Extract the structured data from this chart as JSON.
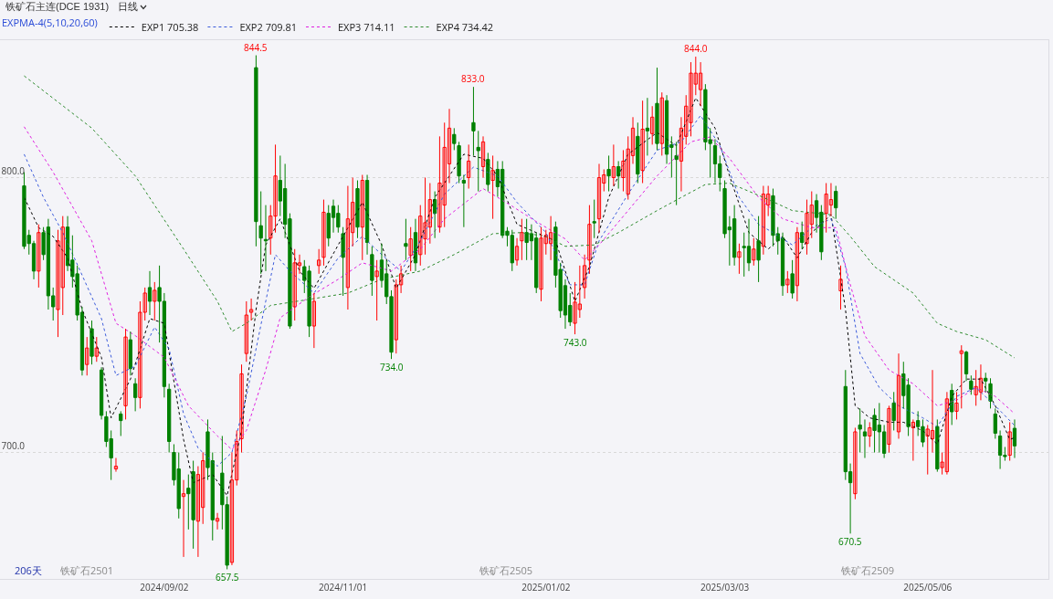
{
  "chart_data": {
    "type": "candlestick",
    "title": "铁矿石主连(DCE 1931)",
    "subtitle": "日线",
    "legend_title": "EXPMA-4(5,10,20,60)",
    "legend": "top left",
    "grid": "y",
    "line_style": "dotted",
    "marker": "none",
    "categories": [
      null,
      null,
      null,
      null,
      null,
      null,
      null,
      null,
      null,
      null,
      null,
      null,
      null,
      null,
      null,
      null,
      null,
      null,
      null,
      null,
      null,
      null,
      null,
      null,
      null,
      null,
      null,
      null,
      null,
      "2024/09/02",
      null,
      null,
      null,
      null,
      null,
      null,
      null,
      null,
      null,
      null,
      null,
      null,
      null,
      null,
      null,
      null,
      null,
      null,
      null,
      null,
      null,
      null,
      null,
      null,
      null,
      null,
      null,
      null,
      null,
      null,
      null,
      null,
      null,
      null,
      null,
      null,
      "2024/11/01",
      null,
      null,
      null,
      null,
      null,
      null,
      null,
      null,
      null,
      null,
      null,
      null,
      null,
      null,
      null,
      null,
      null,
      null,
      null,
      null,
      null,
      null,
      null,
      null,
      null,
      null,
      null,
      null,
      null,
      null,
      null,
      null,
      null,
      null,
      null,
      null,
      null,
      null,
      null,
      null,
      null,
      "2025/01/02",
      null,
      null,
      null,
      null,
      null,
      null,
      null,
      null,
      null,
      null,
      null,
      null,
      null,
      null,
      null,
      null,
      null,
      null,
      null,
      null,
      null,
      null,
      null,
      null,
      null,
      null,
      null,
      null,
      null,
      null,
      null,
      null,
      null,
      null,
      null,
      null,
      "2025/03/03",
      null,
      null,
      null,
      null,
      null,
      null,
      null,
      null,
      null,
      null,
      null,
      null,
      null,
      null,
      null,
      null,
      null,
      null,
      null,
      null,
      null,
      null,
      null,
      null,
      null,
      null,
      null,
      null,
      null,
      null,
      null,
      null,
      null,
      null,
      null,
      null,
      null,
      null,
      null,
      null,
      null,
      "2025/05/06",
      null,
      null,
      null,
      null,
      null,
      null,
      null,
      null,
      null,
      null,
      null,
      null,
      null,
      null,
      null,
      null,
      null,
      null
    ],
    "ylim": [
      654,
      850
    ],
    "yticks": [
      {
        "value": 700,
        "label": "700.0"
      },
      {
        "value": 800,
        "label": "800.0"
      }
    ],
    "ohlc": [
      [
        797,
        802,
        774,
        775
      ],
      [
        779,
        781,
        772,
        776
      ],
      [
        776,
        777,
        763,
        766
      ],
      [
        766,
        783,
        760,
        780
      ],
      [
        780,
        782,
        770,
        772
      ],
      [
        782,
        785,
        752,
        757
      ],
      [
        757,
        760,
        748,
        753
      ],
      [
        752,
        781,
        742,
        777
      ],
      [
        760,
        786,
        750,
        782
      ],
      [
        782,
        786,
        766,
        768
      ],
      [
        770,
        779,
        760,
        764
      ],
      [
        765,
        768,
        748,
        750
      ],
      [
        751,
        753,
        728,
        730
      ],
      [
        732,
        742,
        728,
        738
      ],
      [
        745,
        748,
        732,
        735
      ],
      [
        735,
        742,
        733,
        738
      ],
      [
        730,
        731,
        712,
        713.5
      ],
      [
        713,
        715,
        702,
        704
      ],
      [
        705,
        708,
        690,
        698
      ],
      [
        694,
        698,
        693,
        695
      ],
      [
        714,
        715,
        706,
        711.6
      ],
      [
        717,
        745,
        712,
        742
      ],
      [
        741,
        744,
        728,
        730.5
      ],
      [
        725,
        727,
        715,
        720
      ],
      [
        720,
        755,
        716,
        751
      ],
      [
        751,
        760,
        748,
        758
      ],
      [
        760,
        766,
        750,
        755
      ],
      [
        755,
        762,
        748,
        759
      ],
      [
        760,
        768,
        740,
        755
      ],
      [
        755,
        758,
        720,
        724
      ],
      [
        723,
        725,
        700,
        704
      ],
      [
        700,
        703,
        688,
        690
      ],
      [
        694,
        700,
        676,
        679.6
      ],
      [
        684,
        690,
        662,
        685
      ],
      [
        687,
        692,
        672,
        685
      ],
      [
        693,
        697,
        665,
        675.5
      ],
      [
        675,
        695,
        662,
        692
      ],
      [
        680,
        700,
        674,
        697
      ],
      [
        707.5,
        712,
        690,
        694.5
      ],
      [
        697,
        700,
        668,
        675.5
      ],
      [
        675,
        678,
        672,
        676
      ],
      [
        692.5,
        706,
        672,
        681
      ],
      [
        681,
        684,
        657.5,
        659
      ],
      [
        660,
        700,
        659,
        690
      ],
      [
        690,
        708,
        688,
        704
      ],
      [
        705,
        732,
        700,
        728.6
      ],
      [
        736,
        755,
        733,
        750
      ],
      [
        751,
        756,
        748,
        752
      ],
      [
        840,
        844.5,
        775,
        784
      ],
      [
        782.5,
        795,
        765,
        778
      ],
      [
        777.5,
        790,
        766,
        777
      ],
      [
        778,
        790,
        772,
        786
      ],
      [
        786,
        812,
        780,
        800.6
      ],
      [
        799,
        808,
        786,
        791.5
      ],
      [
        796,
        805,
        778,
        783
      ],
      [
        785,
        787,
        745,
        746
      ],
      [
        753,
        774,
        748,
        769
      ],
      [
        768,
        772,
        765,
        769
      ],
      [
        767.6,
        770,
        758,
        762.6
      ],
      [
        766,
        768,
        742,
        746
      ],
      [
        746,
        758,
        738,
        755
      ],
      [
        768,
        774,
        765,
        770
      ],
      [
        771,
        792,
        768,
        787.4
      ],
      [
        787,
        790,
        775,
        778
      ],
      [
        789.6,
        792,
        780,
        785.5
      ],
      [
        787,
        790,
        780,
        782
      ],
      [
        779.6,
        782,
        757,
        771
      ],
      [
        760,
        797,
        752,
        785
      ],
      [
        780,
        800,
        775,
        791
      ],
      [
        796,
        799,
        778,
        782
      ],
      [
        782,
        801,
        770,
        799
      ],
      [
        799,
        801,
        772,
        776.4
      ],
      [
        772,
        775,
        757,
        762.6
      ],
      [
        764,
        770,
        748,
        766
      ],
      [
        770,
        776,
        760,
        762.6
      ],
      [
        765,
        770,
        754,
        756.7
      ],
      [
        756.7,
        759,
        734,
        736.5
      ],
      [
        741,
        763,
        736,
        761
      ],
      [
        761,
        768,
        758,
        765
      ],
      [
        776,
        785,
        770,
        775
      ],
      [
        771.7,
        782,
        766,
        777.7
      ],
      [
        780,
        785,
        766,
        769
      ],
      [
        772,
        790,
        768,
        786
      ],
      [
        777.7,
        800,
        772,
        783.6
      ],
      [
        782,
        798,
        776,
        792
      ],
      [
        792,
        795,
        778,
        787
      ],
      [
        782,
        815,
        780,
        798
      ],
      [
        790,
        820,
        782,
        811
      ],
      [
        805,
        825,
        798,
        818
      ],
      [
        815.7,
        818,
        810,
        812.4
      ],
      [
        811.6,
        813,
        798,
        800.6
      ],
      [
        799,
        801,
        782,
        798
      ],
      [
        800,
        812,
        796,
        806
      ],
      [
        820,
        833,
        808,
        817
      ],
      [
        811,
        817,
        795,
        809.8
      ],
      [
        804,
        815,
        800,
        813
      ],
      [
        806.6,
        809,
        795,
        797.5
      ],
      [
        799,
        808,
        785,
        802.6
      ],
      [
        803,
        806,
        793,
        796.7
      ],
      [
        803,
        806,
        778,
        779
      ],
      [
        780.5,
        782,
        775,
        779
      ],
      [
        779,
        781,
        766,
        769
      ],
      [
        770,
        778,
        768,
        775
      ],
      [
        777,
        785,
        770,
        780
      ],
      [
        780,
        785,
        770,
        776.4
      ],
      [
        779.6,
        783,
        770,
        777
      ],
      [
        778,
        780,
        758,
        760
      ],
      [
        759.4,
        782,
        755,
        778
      ],
      [
        776,
        781,
        772,
        779
      ],
      [
        776,
        786,
        770,
        780
      ],
      [
        782,
        784,
        760,
        764.5
      ],
      [
        766.6,
        769,
        749,
        751.6
      ],
      [
        760.7,
        763,
        745,
        750
      ],
      [
        753.5,
        758,
        746,
        747.5
      ],
      [
        747,
        762,
        743,
        754.7
      ],
      [
        752,
        768,
        749,
        754
      ],
      [
        760,
        772,
        756,
        768
      ],
      [
        770,
        790,
        765,
        783
      ],
      [
        784,
        792,
        778,
        783.5
      ],
      [
        785,
        805,
        780,
        800
      ],
      [
        798,
        803,
        795,
        801
      ],
      [
        803,
        808,
        795,
        800.6
      ],
      [
        800,
        812,
        797,
        804
      ],
      [
        804,
        806,
        796,
        800.6
      ],
      [
        800,
        810,
        795,
        806
      ],
      [
        794,
        815,
        792,
        810.4
      ],
      [
        808,
        822,
        805,
        818
      ],
      [
        815,
        820,
        798,
        801.3
      ],
      [
        802.6,
        828,
        798,
        817.6
      ],
      [
        818,
        829,
        808,
        817
      ],
      [
        816,
        826,
        812,
        822
      ],
      [
        827,
        840,
        810,
        812.4
      ],
      [
        812.4,
        831,
        808,
        829
      ],
      [
        828,
        830,
        805,
        808.5
      ],
      [
        812,
        815,
        800,
        811
      ],
      [
        808,
        813,
        790,
        806.6
      ],
      [
        806,
        822,
        795,
        818
      ],
      [
        815,
        830,
        812,
        826
      ],
      [
        820,
        842,
        815,
        838
      ],
      [
        834,
        844,
        830,
        838
      ],
      [
        832,
        842,
        826,
        838
      ],
      [
        832,
        834,
        810,
        813
      ],
      [
        813.8,
        818,
        800,
        812.4
      ],
      [
        811.6,
        814,
        798,
        805
      ],
      [
        805,
        808,
        795,
        800
      ],
      [
        796,
        799,
        778,
        779.6
      ],
      [
        782,
        786,
        768,
        781
      ],
      [
        785,
        790,
        768,
        771
      ],
      [
        771,
        776,
        765,
        773
      ],
      [
        775,
        780,
        764,
        774.5
      ],
      [
        775,
        785,
        766,
        769
      ],
      [
        770,
        778,
        768,
        774
      ],
      [
        777,
        786,
        762,
        770
      ],
      [
        775,
        797,
        772,
        794
      ],
      [
        790,
        797,
        786,
        794
      ],
      [
        793.4,
        796,
        775,
        779
      ],
      [
        779.6,
        782,
        772,
        777
      ],
      [
        778,
        780,
        757,
        760.7
      ],
      [
        761,
        766,
        758,
        763
      ],
      [
        765,
        770,
        756,
        758
      ],
      [
        760.7,
        782,
        755,
        780
      ],
      [
        780,
        784,
        774,
        776.4
      ],
      [
        776,
        792,
        772,
        787
      ],
      [
        783,
        795,
        778,
        790
      ],
      [
        791.6,
        794,
        780,
        785.5
      ],
      [
        787.4,
        790,
        770,
        773
      ],
      [
        787,
        798,
        780,
        794
      ],
      [
        790,
        798,
        786,
        792
      ],
      [
        795,
        797,
        785,
        789
      ],
      [
        758.8,
        768,
        752,
        763
      ],
      [
        724,
        730,
        690,
        693
      ],
      [
        693,
        696,
        670.5,
        689
      ],
      [
        685,
        709,
        683,
        707.5
      ],
      [
        710,
        716,
        700,
        708.5
      ],
      [
        707.5,
        712,
        698,
        706
      ],
      [
        706,
        711,
        702,
        709
      ],
      [
        713.5,
        716,
        700,
        708
      ],
      [
        710,
        718,
        700,
        707.5
      ],
      [
        707.5,
        710,
        698,
        699.7
      ],
      [
        703,
        717,
        700,
        716
      ],
      [
        718,
        722,
        708,
        711.6
      ],
      [
        707.5,
        736,
        705,
        728
      ],
      [
        728.6,
        733,
        716,
        720.7
      ],
      [
        724.5,
        727,
        706,
        709.4
      ],
      [
        709,
        712,
        697,
        711
      ],
      [
        711.6,
        715,
        706,
        709.4
      ],
      [
        709.4,
        712,
        702,
        703.8
      ],
      [
        706,
        710,
        692,
        708.5
      ],
      [
        705,
        730,
        700,
        708
      ],
      [
        709.4,
        712,
        693,
        694
      ],
      [
        694.5,
        700,
        692,
        696.5
      ],
      [
        693,
        722,
        692,
        719.5
      ],
      [
        722.6,
        725,
        710,
        714.8
      ],
      [
        715,
        722,
        712,
        718
      ],
      [
        736,
        739,
        716,
        737
      ],
      [
        736.5,
        737,
        726,
        728.6
      ],
      [
        726,
        728,
        721,
        723
      ],
      [
        721,
        730,
        717,
        724
      ],
      [
        722,
        732,
        719,
        727
      ],
      [
        727,
        729,
        722,
        726
      ],
      [
        725,
        727,
        716,
        718.7
      ],
      [
        714,
        716,
        705,
        707
      ],
      [
        706,
        708,
        694,
        699
      ],
      [
        699,
        702,
        697,
        698.5
      ],
      [
        699,
        711,
        697,
        707.5
      ],
      [
        708.8,
        712,
        698,
        702.4
      ]
    ],
    "colors": [
      "#008000",
      "#008000",
      "#008000",
      "#ff0000",
      "#008000",
      "#008000",
      "#008000",
      "#ff0000",
      "#ff0000",
      "#008000",
      "#008000",
      "#008000",
      "#008000",
      "#ff0000",
      "#008000",
      "#ff0000",
      "#008000",
      "#008000",
      "#008000",
      "#ff0000",
      "#008000",
      "#ff0000",
      "#008000",
      "#008000",
      "#ff0000",
      "#ff0000",
      "#008000",
      "#ff0000",
      "#008000",
      "#008000",
      "#008000",
      "#008000",
      "#008000",
      "#ff0000",
      "#008000",
      "#008000",
      "#ff0000",
      "#ff0000",
      "#008000",
      "#008000",
      "#ff0000",
      "#008000",
      "#008000",
      "#ff0000",
      "#ff0000",
      "#ff0000",
      "#ff0000",
      "#ff0000",
      "#008000",
      "#008000",
      "#008000",
      "#ff0000",
      "#ff0000",
      "#008000",
      "#008000",
      "#008000",
      "#ff0000",
      "#ff0000",
      "#008000",
      "#008000",
      "#ff0000",
      "#ff0000",
      "#ff0000",
      "#008000",
      "#008000",
      "#008000",
      "#008000",
      "#ff0000",
      "#ff0000",
      "#008000",
      "#ff0000",
      "#008000",
      "#008000",
      "#ff0000",
      "#008000",
      "#008000",
      "#008000",
      "#ff0000",
      "#ff0000",
      "#008000",
      "#ff0000",
      "#008000",
      "#ff0000",
      "#ff0000",
      "#ff0000",
      "#008000",
      "#ff0000",
      "#ff0000",
      "#ff0000",
      "#008000",
      "#008000",
      "#008000",
      "#ff0000",
      "#008000",
      "#008000",
      "#ff0000",
      "#008000",
      "#ff0000",
      "#008000",
      "#008000",
      "#008000",
      "#008000",
      "#ff0000",
      "#ff0000",
      "#008000",
      "#008000",
      "#008000",
      "#ff0000",
      "#ff0000",
      "#ff0000",
      "#008000",
      "#008000",
      "#008000",
      "#008000",
      "#ff0000",
      "#ff0000",
      "#ff0000",
      "#ff0000",
      "#008000",
      "#ff0000",
      "#ff0000",
      "#008000",
      "#ff0000",
      "#008000",
      "#ff0000",
      "#ff0000",
      "#ff0000",
      "#008000",
      "#ff0000",
      "#008000",
      "#ff0000",
      "#008000",
      "#ff0000",
      "#008000",
      "#008000",
      "#008000",
      "#ff0000",
      "#ff0000",
      "#ff0000",
      "#ff0000",
      "#ff0000",
      "#008000",
      "#008000",
      "#008000",
      "#008000",
      "#008000",
      "#008000",
      "#008000",
      "#ff0000",
      "#008000",
      "#008000",
      "#ff0000",
      "#008000",
      "#ff0000",
      "#ff0000",
      "#008000",
      "#008000",
      "#008000",
      "#ff0000",
      "#008000",
      "#ff0000",
      "#008000",
      "#ff0000",
      "#ff0000",
      "#008000",
      "#008000",
      "#ff0000",
      "#ff0000",
      "#008000",
      "#ff0000",
      "#008000",
      "#008000",
      "#ff0000",
      "#008000",
      "#008000",
      "#ff0000",
      "#008000",
      "#008000",
      "#008000",
      "#ff0000",
      "#008000",
      "#ff0000",
      "#008000",
      "#008000",
      "#ff0000",
      "#008000",
      "#008000",
      "#ff0000",
      "#ff0000",
      "#008000",
      "#ff0000",
      "#ff0000",
      "#008000",
      "#ff0000",
      "#ff0000",
      "#008000",
      "#008000",
      "#ff0000",
      "#ff0000",
      "#008000",
      "#008000",
      "#008000",
      "#008000",
      "#008000",
      "#ff0000",
      "#008000"
    ],
    "series": [
      {
        "type": "line",
        "name": "EXP1 705.38",
        "color": "#000000",
        "values": [
          792.8,
          null,
          null,
          781.8,
          null,
          null,
          778.6,
          null,
          null,
          770.8,
          null,
          null,
          752,
          null,
          null,
          null,
          734.6,
          null,
          712.6,
          null,
          null,
          null,
          726.7,
          null,
          null,
          null,
          748.7,
          null,
          null,
          747,
          null,
          null,
          null,
          704.7,
          null,
          689,
          null,
          null,
          null,
          692,
          null,
          null,
          684.3,
          null,
          null,
          708,
          null,
          null,
          752,
          null,
          775.5,
          null,
          null,
          785,
          null,
          null,
          null,
          766,
          null,
          null,
          759.7,
          null,
          null,
          null,
          null,
          775.5,
          null,
          null,
          null,
          null,
          791,
          null,
          null,
          null,
          775.5,
          null,
          null,
          759.7,
          null,
          null,
          null,
          772,
          null,
          null,
          null,
          792.8,
          null,
          null,
          null,
          null,
          null,
          808.5,
          null,
          null,
          null,
          807,
          null,
          null,
          800.6,
          null,
          null,
          null,
          783,
          null,
          null,
          null,
          780,
          null,
          null,
          null,
          777,
          null,
          null,
          null,
          755,
          null,
          null,
          767.6,
          null,
          null,
          null,
          792.8,
          null,
          null,
          null,
          808.5,
          null,
          null,
          null,
          null,
          null,
          816.4,
          null,
          null,
          null,
          811.6,
          null,
          null,
          null,
          829,
          null,
          null,
          null,
          818,
          null,
          null,
          800.6,
          null,
          null,
          null,
          780,
          null,
          null,
          null,
          774,
          null,
          null,
          778.6,
          null,
          null,
          770.8,
          null,
          null,
          780,
          null,
          null,
          null,
          786.5,
          null,
          null,
          752,
          null,
          717,
          null,
          null,
          712.6,
          null,
          null,
          null,
          711,
          null,
          null,
          711,
          null,
          null,
          null,
          707.9,
          null,
          null,
          703,
          null,
          null,
          720.4,
          null,
          null,
          726.7,
          null,
          null,
          726.7,
          null,
          null,
          717,
          null,
          null,
          704.7,
          705.4
        ]
      },
      {
        "type": "line",
        "name": "EXP2 709.81",
        "color": "#3b5bdb",
        "values": [
          808.5,
          null,
          null,
          null,
          792.8,
          null,
          null,
          null,
          780,
          null,
          null,
          null,
          764.5,
          null,
          null,
          null,
          748.7,
          null,
          null,
          728,
          null,
          null,
          null,
          731.4,
          null,
          null,
          null,
          745.6,
          null,
          null,
          737.7,
          null,
          null,
          714,
          null,
          null,
          701.6,
          null,
          null,
          null,
          695,
          null,
          null,
          700,
          null,
          null,
          720.4,
          null,
          null,
          null,
          755,
          null,
          772,
          null,
          null,
          766,
          null,
          null,
          null,
          null,
          758,
          null,
          null,
          null,
          null,
          770.8,
          null,
          null,
          null,
          null,
          778.6,
          null,
          null,
          null,
          772,
          null,
          null,
          null,
          766,
          null,
          null,
          null,
          777,
          null,
          null,
          null,
          null,
          794,
          null,
          null,
          null,
          null,
          null,
          803.8,
          null,
          null,
          null,
          null,
          800.6,
          null,
          null,
          null,
          791,
          null,
          null,
          null,
          null,
          null,
          780,
          null,
          null,
          null,
          null,
          761,
          null,
          null,
          761,
          null,
          null,
          777,
          null,
          null,
          null,
          null,
          null,
          794,
          null,
          null,
          null,
          null,
          null,
          810,
          null,
          null,
          null,
          null,
          813,
          null,
          null,
          null,
          822.6,
          null,
          null,
          null,
          811.6,
          null,
          null,
          null,
          792.8,
          null,
          null,
          null,
          783,
          null,
          null,
          780,
          null,
          null,
          null,
          775.5,
          null,
          null,
          null,
          781.8,
          null,
          null,
          null,
          785,
          null,
          null,
          767.6,
          null,
          null,
          736,
          null,
          null,
          null,
          723.6,
          null,
          null,
          null,
          717,
          null,
          null,
          null,
          null,
          712.6,
          null,
          null,
          709.4,
          null,
          null,
          null,
          720.4,
          null,
          null,
          null,
          723.6,
          null,
          null,
          null,
          717,
          null,
          null,
          null,
          709.8
        ]
      },
      {
        "type": "line",
        "name": "EXP3 714.11",
        "color": "#e020e0",
        "values": [
          818.5,
          null,
          null,
          null,
          null,
          null,
          802,
          null,
          null,
          null,
          null,
          null,
          null,
          null,
          777,
          null,
          null,
          null,
          null,
          747,
          null,
          null,
          null,
          742.5,
          null,
          null,
          null,
          null,
          null,
          734.6,
          null,
          null,
          null,
          null,
          717,
          null,
          null,
          null,
          null,
          null,
          706,
          null,
          null,
          701,
          null,
          null,
          708,
          null,
          null,
          null,
          730,
          null,
          null,
          749,
          null,
          null,
          null,
          null,
          null,
          756.6,
          null,
          null,
          null,
          null,
          null,
          763,
          null,
          null,
          null,
          null,
          769,
          null,
          null,
          null,
          null,
          null,
          766,
          null,
          null,
          null,
          null,
          null,
          774,
          null,
          null,
          null,
          null,
          785,
          null,
          null,
          null,
          null,
          null,
          null,
          null,
          796,
          null,
          null,
          null,
          null,
          null,
          789.6,
          null,
          null,
          null,
          null,
          784,
          null,
          null,
          null,
          null,
          null,
          777.7,
          null,
          null,
          null,
          770,
          null,
          null,
          775.5,
          null,
          null,
          null,
          null,
          null,
          788,
          null,
          null,
          null,
          null,
          null,
          800.6,
          null,
          null,
          null,
          null,
          null,
          null,
          813,
          null,
          null,
          null,
          814.8,
          null,
          null,
          null,
          807,
          null,
          null,
          null,
          null,
          null,
          792.8,
          null,
          null,
          null,
          null,
          785,
          null,
          null,
          null,
          null,
          null,
          781.8,
          null,
          null,
          null,
          null,
          781.8,
          null,
          null,
          761,
          null,
          null,
          742.5,
          null,
          null,
          null,
          null,
          730,
          null,
          null,
          null,
          null,
          725,
          null,
          null,
          null,
          null,
          717,
          null,
          null,
          null,
          719,
          null,
          null,
          null,
          723.6,
          null,
          null,
          null,
          720.4,
          null,
          null,
          null,
          714.1
        ]
      },
      {
        "type": "line",
        "name": "EXP4 734.42",
        "color": "#2e8b2e",
        "values": [
          837,
          null,
          null,
          null,
          null,
          null,
          null,
          null,
          null,
          null,
          null,
          null,
          null,
          null,
          818,
          null,
          null,
          null,
          null,
          null,
          null,
          null,
          null,
          800.6,
          null,
          null,
          null,
          null,
          null,
          null,
          null,
          null,
          null,
          774,
          null,
          null,
          null,
          null,
          null,
          null,
          755,
          null,
          null,
          744,
          null,
          null,
          747,
          null,
          null,
          null,
          null,
          753.5,
          null,
          null,
          null,
          null,
          null,
          null,
          null,
          755.7,
          null,
          null,
          null,
          null,
          null,
          null,
          null,
          758,
          null,
          null,
          null,
          null,
          null,
          null,
          763,
          null,
          null,
          null,
          null,
          null,
          null,
          null,
          766,
          null,
          null,
          null,
          null,
          null,
          null,
          772,
          null,
          null,
          null,
          null,
          null,
          null,
          null,
          779.6,
          null,
          null,
          null,
          null,
          null,
          780,
          null,
          null,
          null,
          null,
          778.6,
          null,
          null,
          null,
          775,
          null,
          null,
          null,
          null,
          null,
          775.5,
          null,
          null,
          null,
          null,
          780,
          null,
          null,
          null,
          null,
          null,
          null,
          null,
          788,
          null,
          null,
          null,
          null,
          792.8,
          null,
          null,
          null,
          null,
          797.5,
          null,
          null,
          null,
          null,
          798,
          null,
          null,
          null,
          null,
          null,
          null,
          792.8,
          null,
          null,
          null,
          null,
          null,
          788,
          null,
          null,
          null,
          null,
          null,
          null,
          null,
          786.5,
          null,
          null,
          null,
          778.6,
          null,
          null,
          null,
          null,
          767.6,
          null,
          null,
          null,
          null,
          null,
          null,
          null,
          758,
          null,
          null,
          null,
          null,
          747,
          null,
          null,
          null,
          744,
          null,
          null,
          null,
          null,
          null,
          741,
          null,
          null,
          null,
          null,
          null,
          734.4
        ]
      }
    ],
    "annotations": [
      {
        "text": "844.5",
        "y": 844.5
      },
      {
        "text": "833.0",
        "y": 833
      },
      {
        "text": "734.0",
        "y": 734
      },
      {
        "text": "743.0",
        "y": 743
      },
      {
        "text": "844.0",
        "y": 844
      },
      {
        "text": "657.5",
        "y": 657.5
      },
      {
        "text": "670.5",
        "y": 670.5
      },
      "206天",
      "铁矿石2501",
      "铁矿石2505",
      "铁矿石2509"
    ]
  }
}
